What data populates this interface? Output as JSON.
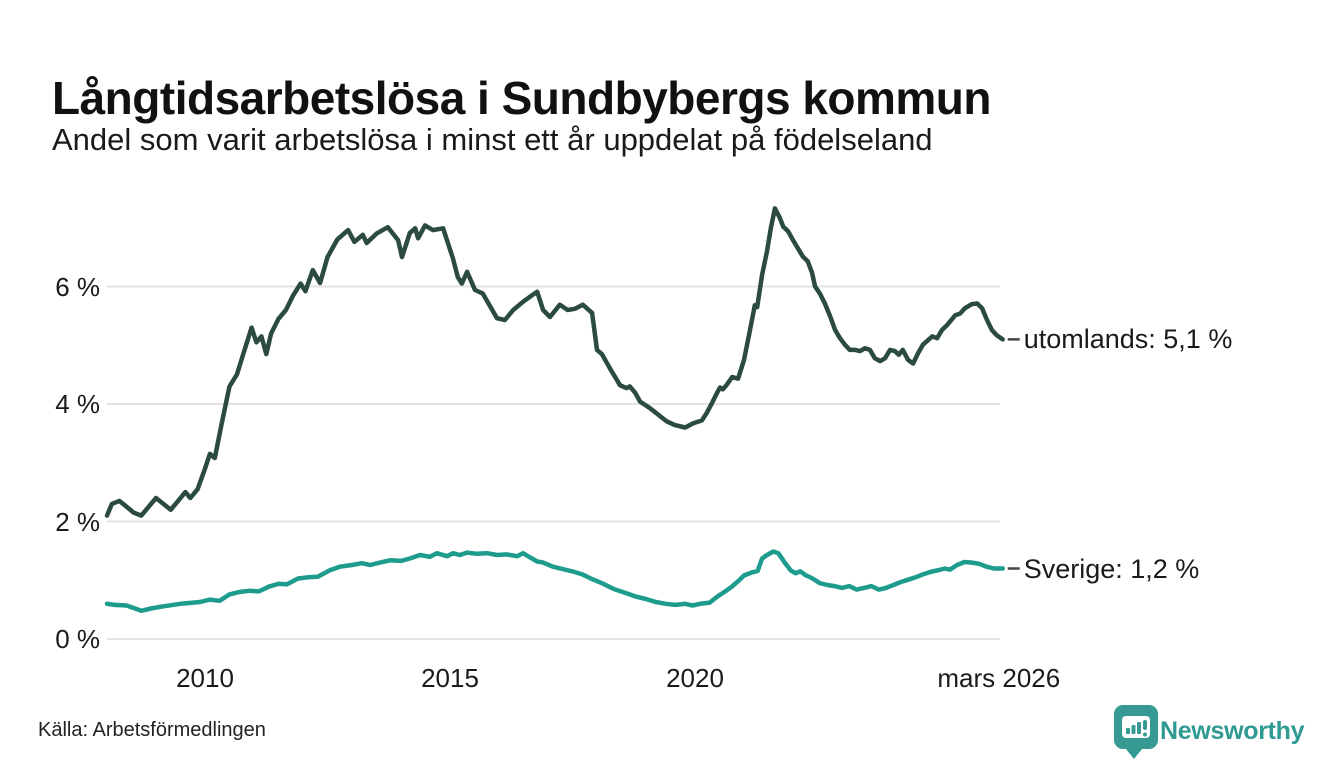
{
  "header": {
    "title": "Långtidsarbetslösa i Sundbybergs kommun",
    "subtitle": "Andel som varit arbetslösa i minst ett år uppdelat på födelseland"
  },
  "footer": {
    "source": "Källa: Arbetsförmedlingen",
    "brand": "Newsworthy",
    "brand_color": "#2f9a92"
  },
  "colors": {
    "grid": "#e3e3e3",
    "text": "#1a1a1a",
    "end_label_dash": "#444444",
    "utomlands_line": "#2b4a40",
    "sverige_line": "#1d9c8d"
  },
  "chart_data": {
    "type": "line",
    "title": "Långtidsarbetslösa i Sundbybergs kommun",
    "subtitle": "Andel som varit arbetslösa i minst ett år uppdelat på födelseland",
    "unit": "%",
    "grid": true,
    "x_axis": {
      "range": [
        2008.0,
        2026.3
      ],
      "ticks": [
        {
          "label": "2010",
          "year": 2010
        },
        {
          "label": "2015",
          "year": 2015
        },
        {
          "label": "2020",
          "year": 2020
        },
        {
          "label": "mars 2026",
          "year": 2026.2
        }
      ]
    },
    "y_axis": {
      "range": [
        0,
        7.6
      ],
      "ticks": [
        {
          "label": "0 %",
          "value": 0
        },
        {
          "label": "2 %",
          "value": 2
        },
        {
          "label": "4 %",
          "value": 4
        },
        {
          "label": "6 %",
          "value": 6
        }
      ]
    },
    "series": [
      {
        "name": "utomlands",
        "color": "#2b4a40",
        "end_label": "utomlands: 5,1 %",
        "end_value": "5,1 %",
        "points": [
          [
            2008.0,
            2.1
          ],
          [
            2008.1,
            2.3
          ],
          [
            2008.25,
            2.35
          ],
          [
            2008.4,
            2.25
          ],
          [
            2008.55,
            2.15
          ],
          [
            2008.7,
            2.1
          ],
          [
            2008.85,
            2.25
          ],
          [
            2009.0,
            2.4
          ],
          [
            2009.15,
            2.3
          ],
          [
            2009.3,
            2.2
          ],
          [
            2009.45,
            2.35
          ],
          [
            2009.6,
            2.5
          ],
          [
            2009.7,
            2.4
          ],
          [
            2009.85,
            2.55
          ],
          [
            2010.0,
            2.9
          ],
          [
            2010.1,
            3.15
          ],
          [
            2010.2,
            3.08
          ],
          [
            2010.35,
            3.7
          ],
          [
            2010.5,
            4.3
          ],
          [
            2010.65,
            4.5
          ],
          [
            2010.8,
            4.9
          ],
          [
            2010.95,
            5.3
          ],
          [
            2011.05,
            5.05
          ],
          [
            2011.15,
            5.15
          ],
          [
            2011.25,
            4.85
          ],
          [
            2011.35,
            5.2
          ],
          [
            2011.5,
            5.45
          ],
          [
            2011.65,
            5.6
          ],
          [
            2011.8,
            5.85
          ],
          [
            2011.95,
            6.05
          ],
          [
            2012.05,
            5.92
          ],
          [
            2012.2,
            6.28
          ],
          [
            2012.35,
            6.06
          ],
          [
            2012.5,
            6.5
          ],
          [
            2012.7,
            6.8
          ],
          [
            2012.92,
            6.96
          ],
          [
            2013.05,
            6.76
          ],
          [
            2013.22,
            6.88
          ],
          [
            2013.3,
            6.74
          ],
          [
            2013.5,
            6.9
          ],
          [
            2013.73,
            7.01
          ],
          [
            2013.94,
            6.79
          ],
          [
            2014.02,
            6.5
          ],
          [
            2014.18,
            6.91
          ],
          [
            2014.29,
            6.99
          ],
          [
            2014.35,
            6.82
          ],
          [
            2014.49,
            7.04
          ],
          [
            2014.65,
            6.96
          ],
          [
            2014.86,
            6.99
          ],
          [
            2015.06,
            6.48
          ],
          [
            2015.16,
            6.16
          ],
          [
            2015.24,
            6.05
          ],
          [
            2015.35,
            6.25
          ],
          [
            2015.51,
            5.94
          ],
          [
            2015.67,
            5.88
          ],
          [
            2015.96,
            5.46
          ],
          [
            2016.12,
            5.43
          ],
          [
            2016.29,
            5.6
          ],
          [
            2016.49,
            5.74
          ],
          [
            2016.69,
            5.86
          ],
          [
            2016.78,
            5.91
          ],
          [
            2016.9,
            5.6
          ],
          [
            2017.04,
            5.48
          ],
          [
            2017.24,
            5.69
          ],
          [
            2017.4,
            5.6
          ],
          [
            2017.55,
            5.62
          ],
          [
            2017.71,
            5.69
          ],
          [
            2017.9,
            5.55
          ],
          [
            2018.0,
            4.92
          ],
          [
            2018.1,
            4.85
          ],
          [
            2018.27,
            4.6
          ],
          [
            2018.47,
            4.32
          ],
          [
            2018.6,
            4.27
          ],
          [
            2018.67,
            4.3
          ],
          [
            2018.78,
            4.19
          ],
          [
            2018.88,
            4.04
          ],
          [
            2019.08,
            3.93
          ],
          [
            2019.29,
            3.79
          ],
          [
            2019.43,
            3.7
          ],
          [
            2019.59,
            3.64
          ],
          [
            2019.8,
            3.6
          ],
          [
            2019.96,
            3.67
          ],
          [
            2020.14,
            3.72
          ],
          [
            2020.24,
            3.85
          ],
          [
            2020.35,
            4.02
          ],
          [
            2020.45,
            4.19
          ],
          [
            2020.51,
            4.28
          ],
          [
            2020.57,
            4.25
          ],
          [
            2020.65,
            4.33
          ],
          [
            2020.76,
            4.46
          ],
          [
            2020.88,
            4.43
          ],
          [
            2021.0,
            4.75
          ],
          [
            2021.12,
            5.25
          ],
          [
            2021.22,
            5.68
          ],
          [
            2021.27,
            5.65
          ],
          [
            2021.37,
            6.2
          ],
          [
            2021.47,
            6.6
          ],
          [
            2021.55,
            7.0
          ],
          [
            2021.63,
            7.33
          ],
          [
            2021.73,
            7.17
          ],
          [
            2021.8,
            7.02
          ],
          [
            2021.9,
            6.94
          ],
          [
            2022.0,
            6.79
          ],
          [
            2022.1,
            6.65
          ],
          [
            2022.2,
            6.51
          ],
          [
            2022.3,
            6.43
          ],
          [
            2022.39,
            6.23
          ],
          [
            2022.45,
            6.0
          ],
          [
            2022.55,
            5.88
          ],
          [
            2022.65,
            5.71
          ],
          [
            2022.76,
            5.49
          ],
          [
            2022.86,
            5.26
          ],
          [
            2022.96,
            5.12
          ],
          [
            2023.06,
            5.01
          ],
          [
            2023.16,
            4.92
          ],
          [
            2023.27,
            4.92
          ],
          [
            2023.37,
            4.9
          ],
          [
            2023.47,
            4.95
          ],
          [
            2023.57,
            4.92
          ],
          [
            2023.67,
            4.78
          ],
          [
            2023.78,
            4.73
          ],
          [
            2023.88,
            4.78
          ],
          [
            2023.98,
            4.92
          ],
          [
            2024.08,
            4.9
          ],
          [
            2024.16,
            4.84
          ],
          [
            2024.24,
            4.92
          ],
          [
            2024.35,
            4.75
          ],
          [
            2024.45,
            4.69
          ],
          [
            2024.55,
            4.86
          ],
          [
            2024.65,
            5.01
          ],
          [
            2024.76,
            5.09
          ],
          [
            2024.84,
            5.15
          ],
          [
            2024.94,
            5.12
          ],
          [
            2025.04,
            5.26
          ],
          [
            2025.14,
            5.34
          ],
          [
            2025.31,
            5.51
          ],
          [
            2025.41,
            5.54
          ],
          [
            2025.51,
            5.63
          ],
          [
            2025.65,
            5.7
          ],
          [
            2025.76,
            5.71
          ],
          [
            2025.86,
            5.63
          ],
          [
            2025.96,
            5.43
          ],
          [
            2026.06,
            5.26
          ],
          [
            2026.16,
            5.17
          ],
          [
            2026.28,
            5.1
          ]
        ]
      },
      {
        "name": "Sverige",
        "color": "#1d9c8d",
        "end_label": "Sverige: 1,2 %",
        "end_value": "1,2 %",
        "points": [
          [
            2008.0,
            0.6
          ],
          [
            2008.15,
            0.58
          ],
          [
            2008.4,
            0.57
          ],
          [
            2008.7,
            0.48
          ],
          [
            2008.9,
            0.52
          ],
          [
            2009.1,
            0.55
          ],
          [
            2009.5,
            0.6
          ],
          [
            2009.9,
            0.63
          ],
          [
            2010.1,
            0.67
          ],
          [
            2010.3,
            0.65
          ],
          [
            2010.5,
            0.76
          ],
          [
            2010.7,
            0.8
          ],
          [
            2010.9,
            0.82
          ],
          [
            2011.1,
            0.81
          ],
          [
            2011.3,
            0.89
          ],
          [
            2011.5,
            0.94
          ],
          [
            2011.67,
            0.93
          ],
          [
            2011.9,
            1.03
          ],
          [
            2012.1,
            1.05
          ],
          [
            2012.3,
            1.06
          ],
          [
            2012.55,
            1.17
          ],
          [
            2012.75,
            1.23
          ],
          [
            2013.0,
            1.26
          ],
          [
            2013.2,
            1.29
          ],
          [
            2013.37,
            1.26
          ],
          [
            2013.57,
            1.3
          ],
          [
            2013.78,
            1.34
          ],
          [
            2014.0,
            1.33
          ],
          [
            2014.18,
            1.37
          ],
          [
            2014.39,
            1.43
          ],
          [
            2014.59,
            1.4
          ],
          [
            2014.73,
            1.46
          ],
          [
            2014.94,
            1.41
          ],
          [
            2015.06,
            1.46
          ],
          [
            2015.2,
            1.43
          ],
          [
            2015.35,
            1.47
          ],
          [
            2015.55,
            1.45
          ],
          [
            2015.76,
            1.46
          ],
          [
            2015.96,
            1.43
          ],
          [
            2016.16,
            1.44
          ],
          [
            2016.37,
            1.41
          ],
          [
            2016.49,
            1.46
          ],
          [
            2016.63,
            1.39
          ],
          [
            2016.78,
            1.32
          ],
          [
            2016.9,
            1.3
          ],
          [
            2017.1,
            1.23
          ],
          [
            2017.3,
            1.19
          ],
          [
            2017.5,
            1.15
          ],
          [
            2017.7,
            1.1
          ],
          [
            2017.9,
            1.02
          ],
          [
            2018.1,
            0.95
          ],
          [
            2018.35,
            0.85
          ],
          [
            2018.6,
            0.78
          ],
          [
            2018.8,
            0.72
          ],
          [
            2019.0,
            0.68
          ],
          [
            2019.2,
            0.63
          ],
          [
            2019.4,
            0.6
          ],
          [
            2019.6,
            0.58
          ],
          [
            2019.8,
            0.6
          ],
          [
            2019.95,
            0.57
          ],
          [
            2020.1,
            0.6
          ],
          [
            2020.3,
            0.62
          ],
          [
            2020.45,
            0.72
          ],
          [
            2020.65,
            0.83
          ],
          [
            2020.75,
            0.89
          ],
          [
            2020.9,
            1.0
          ],
          [
            2021.0,
            1.08
          ],
          [
            2021.15,
            1.13
          ],
          [
            2021.28,
            1.16
          ],
          [
            2021.37,
            1.37
          ],
          [
            2021.47,
            1.43
          ],
          [
            2021.6,
            1.49
          ],
          [
            2021.7,
            1.46
          ],
          [
            2021.85,
            1.28
          ],
          [
            2021.95,
            1.17
          ],
          [
            2022.05,
            1.12
          ],
          [
            2022.15,
            1.15
          ],
          [
            2022.25,
            1.09
          ],
          [
            2022.4,
            1.03
          ],
          [
            2022.55,
            0.95
          ],
          [
            2022.7,
            0.92
          ],
          [
            2022.85,
            0.9
          ],
          [
            2023.0,
            0.87
          ],
          [
            2023.15,
            0.9
          ],
          [
            2023.3,
            0.84
          ],
          [
            2023.45,
            0.87
          ],
          [
            2023.6,
            0.9
          ],
          [
            2023.75,
            0.84
          ],
          [
            2023.9,
            0.87
          ],
          [
            2024.05,
            0.92
          ],
          [
            2024.2,
            0.97
          ],
          [
            2024.35,
            1.01
          ],
          [
            2024.5,
            1.05
          ],
          [
            2024.65,
            1.1
          ],
          [
            2024.8,
            1.14
          ],
          [
            2024.95,
            1.17
          ],
          [
            2025.1,
            1.2
          ],
          [
            2025.2,
            1.18
          ],
          [
            2025.35,
            1.26
          ],
          [
            2025.5,
            1.31
          ],
          [
            2025.65,
            1.3
          ],
          [
            2025.8,
            1.28
          ],
          [
            2025.95,
            1.23
          ],
          [
            2026.1,
            1.2
          ],
          [
            2026.28,
            1.2
          ]
        ]
      }
    ],
    "legend_position": "line-end-labels-right"
  }
}
